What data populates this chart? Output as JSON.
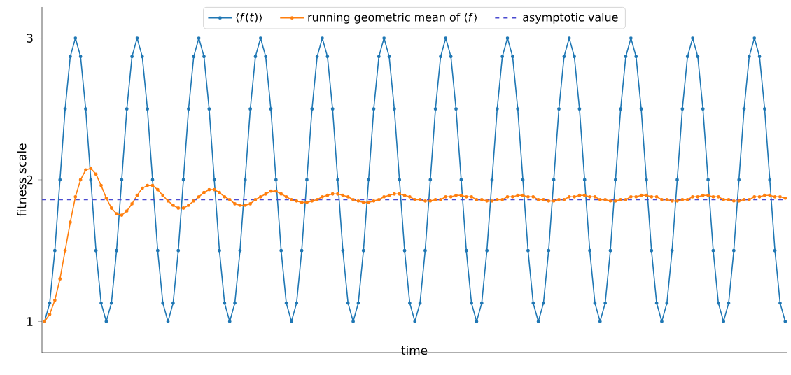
{
  "chart_data": {
    "type": "line",
    "xlabel": "time",
    "ylabel": "fitness scale",
    "ylim": [
      0.78,
      3.22
    ],
    "yticks": [
      1,
      2,
      3
    ],
    "legend": "top",
    "marker": "circle",
    "line_style": "solid",
    "categories": [
      null,
      null,
      null,
      null,
      null,
      null,
      null,
      null,
      null,
      null,
      null,
      null,
      null,
      null,
      null,
      null,
      null,
      null,
      null,
      null,
      null,
      null,
      null,
      null,
      null,
      null,
      null,
      null,
      null,
      null,
      null,
      null,
      null,
      null,
      null,
      null,
      null,
      null,
      null,
      null,
      null,
      null,
      null,
      null,
      null,
      null,
      null,
      null,
      null,
      null,
      null,
      null,
      null,
      null,
      null,
      null,
      null,
      null,
      null,
      null,
      null,
      null,
      null,
      null,
      null,
      null,
      null,
      null,
      null,
      null,
      null,
      null,
      null,
      null,
      null,
      null,
      null,
      null,
      null,
      null,
      null,
      null,
      null,
      null,
      null,
      null,
      null,
      null,
      null,
      null,
      null,
      null,
      null,
      null,
      null,
      null,
      null,
      null,
      null,
      null,
      null,
      null,
      null,
      null,
      null,
      null,
      null,
      null,
      null,
      null,
      null,
      null,
      null,
      null,
      null,
      null,
      null,
      null,
      null,
      null,
      null,
      null,
      null,
      null,
      null,
      null,
      null,
      null,
      null,
      null,
      null,
      null,
      null,
      null,
      null,
      null,
      null,
      null,
      null,
      null,
      null,
      null,
      null,
      null,
      null
    ],
    "series": [
      {
        "name": "⟨*f*(*t*)⟩",
        "color": "#1f77b4",
        "values": [
          1,
          1.13,
          1.5,
          2,
          2.5,
          2.87,
          3,
          2.87,
          2.5,
          2,
          1.5,
          1.13,
          1,
          1.13,
          1.5,
          2,
          2.5,
          2.87,
          3,
          2.87,
          2.5,
          2,
          1.5,
          1.13,
          1,
          1.13,
          1.5,
          2,
          2.5,
          2.87,
          3,
          2.87,
          2.5,
          2,
          1.5,
          1.13,
          1,
          1.13,
          1.5,
          2,
          2.5,
          2.87,
          3,
          2.87,
          2.5,
          2,
          1.5,
          1.13,
          1,
          1.13,
          1.5,
          2,
          2.5,
          2.87,
          3,
          2.87,
          2.5,
          2,
          1.5,
          1.13,
          1,
          1.13,
          1.5,
          2,
          2.5,
          2.87,
          3,
          2.87,
          2.5,
          2,
          1.5,
          1.13,
          1,
          1.13,
          1.5,
          2,
          2.5,
          2.87,
          3,
          2.87,
          2.5,
          2,
          1.5,
          1.13,
          1,
          1.13,
          1.5,
          2,
          2.5,
          2.87,
          3,
          2.87,
          2.5,
          2,
          1.5,
          1.13,
          1,
          1.13,
          1.5,
          2,
          2.5,
          2.87,
          3,
          2.87,
          2.5,
          2,
          1.5,
          1.13,
          1,
          1.13,
          1.5,
          2,
          2.5,
          2.87,
          3,
          2.87,
          2.5,
          2,
          1.5,
          1.13,
          1,
          1.13,
          1.5,
          2,
          2.5,
          2.87,
          3,
          2.87,
          2.5,
          2,
          1.5,
          1.13,
          1,
          1.13,
          1.5,
          2,
          2.5,
          2.87,
          3,
          2.87,
          2.5,
          2,
          1.5,
          1.13,
          1
        ]
      },
      {
        "name": "running geometric mean of ⟨*f*⟩",
        "color": "#ff7f0e",
        "values": [
          1.0,
          1.05,
          1.15,
          1.3,
          1.5,
          1.7,
          1.88,
          2.0,
          2.07,
          2.08,
          2.04,
          1.96,
          1.87,
          1.8,
          1.76,
          1.75,
          1.78,
          1.83,
          1.89,
          1.94,
          1.96,
          1.96,
          1.93,
          1.89,
          1.85,
          1.82,
          1.8,
          1.8,
          1.82,
          1.85,
          1.88,
          1.91,
          1.93,
          1.93,
          1.91,
          1.88,
          1.86,
          1.83,
          1.82,
          1.82,
          1.83,
          1.86,
          1.88,
          1.9,
          1.92,
          1.92,
          1.9,
          1.88,
          1.86,
          1.85,
          1.84,
          1.84,
          1.85,
          1.86,
          1.88,
          1.89,
          1.9,
          1.9,
          1.89,
          1.88,
          1.86,
          1.85,
          1.84,
          1.84,
          1.85,
          1.86,
          1.88,
          1.89,
          1.9,
          1.9,
          1.89,
          1.88,
          1.86,
          1.86,
          1.85,
          1.85,
          1.86,
          1.86,
          1.88,
          1.88,
          1.89,
          1.89,
          1.88,
          1.88,
          1.86,
          1.86,
          1.85,
          1.85,
          1.86,
          1.86,
          1.88,
          1.88,
          1.89,
          1.89,
          1.88,
          1.88,
          1.86,
          1.86,
          1.85,
          1.85,
          1.86,
          1.86,
          1.88,
          1.88,
          1.89,
          1.89,
          1.88,
          1.88,
          1.86,
          1.86,
          1.85,
          1.85,
          1.86,
          1.86,
          1.88,
          1.88,
          1.89,
          1.89,
          1.88,
          1.88,
          1.86,
          1.86,
          1.85,
          1.85,
          1.86,
          1.86,
          1.88,
          1.88,
          1.89,
          1.89,
          1.88,
          1.88,
          1.86,
          1.86,
          1.85,
          1.85,
          1.86,
          1.86,
          1.88,
          1.88,
          1.89,
          1.89,
          1.88,
          1.88,
          1.87
        ]
      }
    ],
    "ref_lines": [
      {
        "axis": "y",
        "value": 1.86,
        "label": "asymptotic value",
        "color": "#4a4ad0",
        "line_style": "dashed"
      }
    ]
  }
}
